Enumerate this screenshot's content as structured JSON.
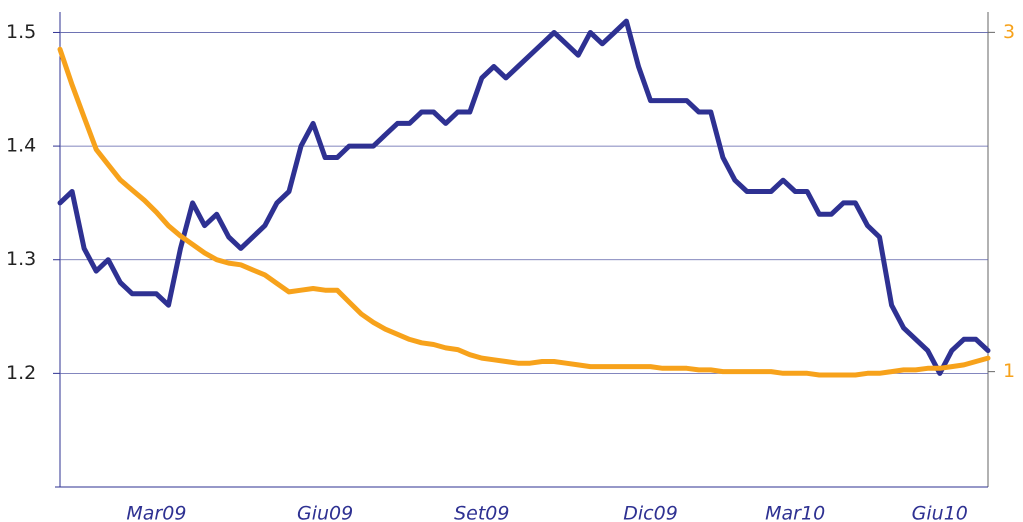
{
  "chart_data": {
    "type": "line",
    "categories": [
      null,
      null,
      null,
      null,
      null,
      null,
      null,
      null,
      "Mar09",
      null,
      null,
      null,
      null,
      null,
      null,
      null,
      null,
      null,
      null,
      null,
      null,
      null,
      "Giu09",
      null,
      null,
      null,
      null,
      null,
      null,
      null,
      null,
      null,
      null,
      null,
      null,
      "Set09",
      null,
      null,
      null,
      null,
      null,
      null,
      null,
      null,
      null,
      null,
      null,
      null,
      null,
      "Dic09",
      null,
      null,
      null,
      null,
      null,
      null,
      null,
      null,
      null,
      null,
      null,
      "Mar10",
      null,
      null,
      null,
      null,
      null,
      null,
      null,
      null,
      null,
      null,
      null,
      "Giu10",
      null,
      null,
      null,
      null
    ],
    "series": [
      {
        "color": "#2e3192",
        "values": [
          1.35,
          1.36,
          1.31,
          1.29,
          1.3,
          1.28,
          1.27,
          1.27,
          1.27,
          1.26,
          1.31,
          1.35,
          1.33,
          1.34,
          1.32,
          1.31,
          1.32,
          1.33,
          1.35,
          1.36,
          1.4,
          1.42,
          1.39,
          1.39,
          1.4,
          1.4,
          1.4,
          1.41,
          1.42,
          1.42,
          1.43,
          1.43,
          1.42,
          1.43,
          1.43,
          1.46,
          1.47,
          1.46,
          1.47,
          1.48,
          1.49,
          1.5,
          1.49,
          1.48,
          1.5,
          1.49,
          1.5,
          1.51,
          1.47,
          1.44,
          1.44,
          1.44,
          1.44,
          1.43,
          1.43,
          1.39,
          1.37,
          1.36,
          1.36,
          1.36,
          1.37,
          1.36,
          1.36,
          1.34,
          1.34,
          1.35,
          1.35,
          1.33,
          1.32,
          1.26,
          1.24,
          1.23,
          1.22,
          1.2,
          1.22,
          1.23,
          1.23,
          1.22
        ]
      },
      {
        "color": "#f7a21b",
        "axis": "y2",
        "values": [
          2.9,
          2.69,
          2.5,
          2.31,
          2.22,
          2.13,
          2.07,
          2.01,
          1.94,
          1.86,
          1.8,
          1.75,
          1.7,
          1.66,
          1.64,
          1.63,
          1.6,
          1.57,
          1.52,
          1.47,
          1.48,
          1.49,
          1.48,
          1.48,
          1.41,
          1.34,
          1.29,
          1.25,
          1.22,
          1.19,
          1.17,
          1.16,
          1.14,
          1.13,
          1.1,
          1.08,
          1.07,
          1.06,
          1.05,
          1.05,
          1.06,
          1.06,
          1.05,
          1.04,
          1.03,
          1.03,
          1.03,
          1.03,
          1.03,
          1.03,
          1.02,
          1.02,
          1.02,
          1.01,
          1.01,
          1.0,
          1.0,
          1.0,
          1.0,
          1.0,
          0.99,
          0.99,
          0.99,
          0.98,
          0.98,
          0.98,
          0.98,
          0.99,
          0.99,
          1.0,
          1.01,
          1.01,
          1.02,
          1.02,
          1.03,
          1.04,
          1.06,
          1.08
        ]
      }
    ],
    "ylim": [
      1.1,
      1.518
    ],
    "yticks": [
      1.2,
      1.3,
      1.4,
      1.5
    ],
    "y2lim": [
      0.32,
      3.12
    ],
    "y2ticks": [
      1,
      3
    ],
    "grid": true
  }
}
